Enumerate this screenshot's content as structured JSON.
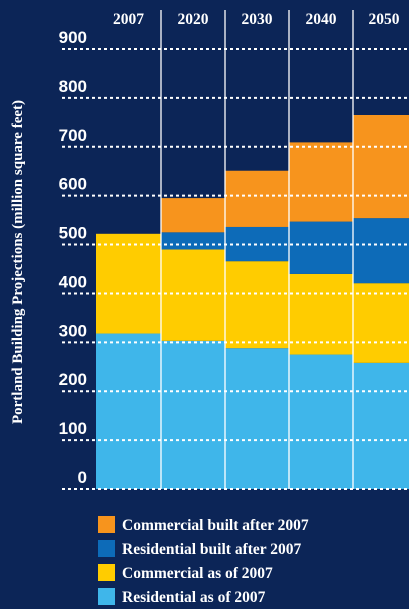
{
  "chart_data": {
    "type": "bar",
    "stacked": true,
    "categories": [
      "2007",
      "2020",
      "2030",
      "2040",
      "2050"
    ],
    "ylabel": "Portland Building Projections (million square feet)",
    "ylim": [
      0,
      900
    ],
    "yticks": [
      "0",
      "100",
      "200",
      "300",
      "400",
      "500",
      "600",
      "700",
      "800",
      "900"
    ],
    "grid": "dashed horizontal",
    "legend_position": "bottom",
    "series": [
      {
        "name": "Residential as of 2007",
        "color": "#3fb6ea",
        "values": [
          318,
          303,
          288,
          275,
          258
        ]
      },
      {
        "name": "Commercial as of 2007",
        "color": "#ffcc00",
        "values": [
          204,
          187,
          178,
          165,
          163
        ]
      },
      {
        "name": "Residential built after 2007",
        "color": "#0d6bb8",
        "values": [
          0,
          35,
          70,
          107,
          133
        ]
      },
      {
        "name": "Commercial built after 2007",
        "color": "#f7941d",
        "values": [
          0,
          70,
          115,
          162,
          211
        ]
      }
    ]
  }
}
